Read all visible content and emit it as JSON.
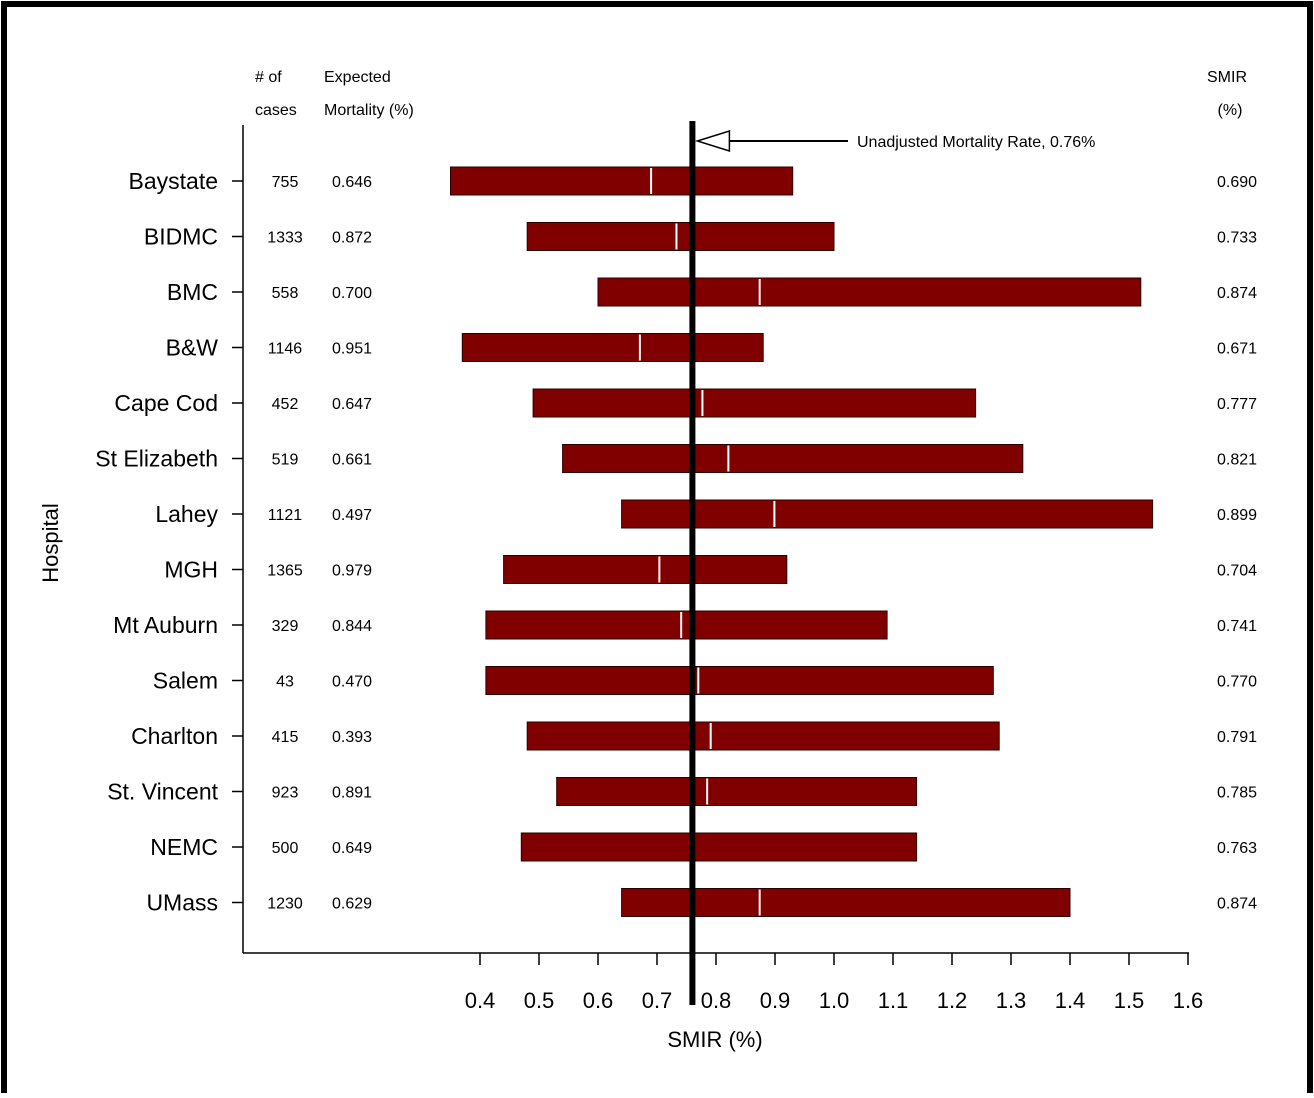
{
  "chart_data": {
    "type": "bar",
    "title": "",
    "xlabel": "SMIR (%)",
    "ylabel": "Hospital",
    "xlim": [
      0.4,
      1.6
    ],
    "x_ticks": [
      "0.4",
      "0.5",
      "0.6",
      "0.7",
      "0.8",
      "0.9",
      "1.0",
      "1.1",
      "1.2",
      "1.3",
      "1.4",
      "1.5",
      "1.6"
    ],
    "column_headers": {
      "cases_line1": "# of",
      "cases_line2": "cases",
      "expected_line1": "Expected",
      "expected_line2": "Mortality (%)",
      "smir_line1": "SMIR",
      "smir_line2": "(%)"
    },
    "reference_line": {
      "value": 0.76,
      "label": "Unadjusted Mortality Rate, 0.76%"
    },
    "colors": {
      "bar": "#800000",
      "point_marker": "#ffffff",
      "reference": "#000000"
    },
    "hospitals": [
      {
        "name": "Baystate",
        "cases": "755",
        "expected": "0.646",
        "smir": "0.690",
        "smir_value": 0.69,
        "low": 0.35,
        "high": 0.93
      },
      {
        "name": "BIDMC",
        "cases": "1333",
        "expected": "0.872",
        "smir": "0.733",
        "smir_value": 0.733,
        "low": 0.48,
        "high": 1.0
      },
      {
        "name": "BMC",
        "cases": "558",
        "expected": "0.700",
        "smir": "0.874",
        "smir_value": 0.874,
        "low": 0.6,
        "high": 1.52
      },
      {
        "name": "B&W",
        "cases": "1146",
        "expected": "0.951",
        "smir": "0.671",
        "smir_value": 0.671,
        "low": 0.37,
        "high": 0.88
      },
      {
        "name": "Cape Cod",
        "cases": "452",
        "expected": "0.647",
        "smir": "0.777",
        "smir_value": 0.777,
        "low": 0.49,
        "high": 1.24
      },
      {
        "name": "St Elizabeth",
        "cases": "519",
        "expected": "0.661",
        "smir": "0.821",
        "smir_value": 0.821,
        "low": 0.54,
        "high": 1.32
      },
      {
        "name": "Lahey",
        "cases": "1121",
        "expected": "0.497",
        "smir": "0.899",
        "smir_value": 0.899,
        "low": 0.64,
        "high": 1.54
      },
      {
        "name": "MGH",
        "cases": "1365",
        "expected": "0.979",
        "smir": "0.704",
        "smir_value": 0.704,
        "low": 0.44,
        "high": 0.92
      },
      {
        "name": "Mt Auburn",
        "cases": "329",
        "expected": "0.844",
        "smir": "0.741",
        "smir_value": 0.741,
        "low": 0.41,
        "high": 1.09
      },
      {
        "name": "Salem",
        "cases": "43",
        "expected": "0.470",
        "smir": "0.770",
        "smir_value": 0.77,
        "low": 0.41,
        "high": 1.27
      },
      {
        "name": "Charlton",
        "cases": "415",
        "expected": "0.393",
        "smir": "0.791",
        "smir_value": 0.791,
        "low": 0.48,
        "high": 1.28
      },
      {
        "name": "St. Vincent",
        "cases": "923",
        "expected": "0.891",
        "smir": "0.785",
        "smir_value": 0.785,
        "low": 0.53,
        "high": 1.14
      },
      {
        "name": "NEMC",
        "cases": "500",
        "expected": "0.649",
        "smir": "0.763",
        "smir_value": 0.763,
        "low": 0.47,
        "high": 1.14
      },
      {
        "name": "UMass",
        "cases": "1230",
        "expected": "0.629",
        "smir": "0.874",
        "smir_value": 0.874,
        "low": 0.64,
        "high": 1.4
      }
    ]
  }
}
